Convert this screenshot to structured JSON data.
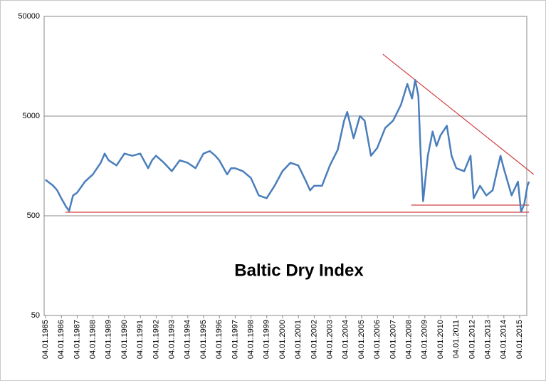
{
  "chart_data": {
    "type": "line",
    "title": "Baltic Dry Index",
    "log_scale": true,
    "grid": true,
    "x": [
      1985.0,
      1985.5,
      1985.75,
      1986.0,
      1986.3,
      1986.5,
      1986.75,
      1987.0,
      1987.5,
      1988.0,
      1988.5,
      1988.75,
      1989.0,
      1989.5,
      1990.0,
      1990.5,
      1991.0,
      1991.5,
      1991.75,
      1992.0,
      1992.5,
      1993.0,
      1993.5,
      1994.0,
      1994.5,
      1995.0,
      1995.4,
      1995.75,
      1996.0,
      1996.5,
      1996.75,
      1997.0,
      1997.5,
      1998.0,
      1998.5,
      1999.0,
      1999.5,
      2000.0,
      2000.5,
      2001.0,
      2001.5,
      2001.75,
      2002.0,
      2002.5,
      2003.0,
      2003.5,
      2003.9,
      2004.1,
      2004.5,
      2004.9,
      2005.2,
      2005.6,
      2006.0,
      2006.5,
      2007.0,
      2007.5,
      2007.9,
      2008.2,
      2008.4,
      2008.6,
      2008.75,
      2008.9,
      2009.2,
      2009.5,
      2009.75,
      2010.0,
      2010.4,
      2010.7,
      2011.0,
      2011.5,
      2011.9,
      2012.1,
      2012.5,
      2012.9,
      2013.3,
      2013.8,
      2014.0,
      2014.5,
      2014.9,
      2015.1,
      2015.3,
      2015.5,
      2015.6
    ],
    "series": [
      {
        "name": "Baltic Dry Index",
        "color": "#4a7ebb",
        "values": [
          1150,
          1000,
          900,
          750,
          620,
          560,
          800,
          850,
          1100,
          1300,
          1700,
          2100,
          1800,
          1600,
          2100,
          2000,
          2100,
          1500,
          1800,
          2000,
          1700,
          1400,
          1800,
          1700,
          1500,
          2100,
          2230,
          2000,
          1800,
          1300,
          1500,
          1500,
          1400,
          1200,
          800,
          750,
          1000,
          1400,
          1700,
          1600,
          1100,
          900,
          1000,
          1000,
          1600,
          2300,
          4500,
          5500,
          3000,
          5000,
          4500,
          2000,
          2400,
          3800,
          4500,
          6500,
          10500,
          7500,
          11500,
          8000,
          2000,
          700,
          2000,
          3500,
          2500,
          3200,
          4000,
          2000,
          1500,
          1400,
          2000,
          750,
          1000,
          800,
          900,
          2000,
          1500,
          800,
          1100,
          550,
          650,
          1000,
          1100
        ]
      }
    ],
    "trend_lines": [
      {
        "color": "#d04040",
        "x": [
          2006.35,
          2015.9
        ],
        "values": [
          20900,
          1300
        ]
      },
      {
        "color": "#d04040",
        "x": [
          1986.27,
          2015.6
        ],
        "values": [
          543,
          543
        ]
      },
      {
        "color": "#d04040",
        "x": [
          2008.15,
          2015.6
        ],
        "values": [
          640,
          640
        ]
      }
    ],
    "xlim": [
      1984.92,
      2015.46
    ],
    "ylim": [
      50,
      50000
    ],
    "yticks": [
      50,
      500,
      5000,
      50000
    ],
    "xticks": [
      {
        "value": 1985.01,
        "label": "04.01.1985"
      },
      {
        "value": 1986.01,
        "label": "04.01.1986"
      },
      {
        "value": 1987.01,
        "label": "04.01.1987"
      },
      {
        "value": 1988.01,
        "label": "04.01.1988"
      },
      {
        "value": 1989.01,
        "label": "04.01.1989"
      },
      {
        "value": 1990.01,
        "label": "04.01.1990"
      },
      {
        "value": 1991.01,
        "label": "04.01.1991"
      },
      {
        "value": 1992.01,
        "label": "04.01.1992"
      },
      {
        "value": 1993.01,
        "label": "04.01.1993"
      },
      {
        "value": 1994.01,
        "label": "04.01.1994"
      },
      {
        "value": 1995.01,
        "label": "04.01.1995"
      },
      {
        "value": 1996.01,
        "label": "04.01.1996"
      },
      {
        "value": 1997.01,
        "label": "04.01.1997"
      },
      {
        "value": 1998.01,
        "label": "04.01.1998"
      },
      {
        "value": 1999.01,
        "label": "04.01.1999"
      },
      {
        "value": 2000.01,
        "label": "04.01.2000"
      },
      {
        "value": 2001.01,
        "label": "04.01.2001"
      },
      {
        "value": 2002.01,
        "label": "04.01.2002"
      },
      {
        "value": 2003.01,
        "label": "04.01.2003"
      },
      {
        "value": 2004.01,
        "label": "04.01.2004"
      },
      {
        "value": 2005.01,
        "label": "04.01.2005"
      },
      {
        "value": 2006.01,
        "label": "04.01.2006"
      },
      {
        "value": 2007.01,
        "label": "04.01.2007"
      },
      {
        "value": 2008.01,
        "label": "04.01.2008"
      },
      {
        "value": 2009.01,
        "label": "04.01.2009"
      },
      {
        "value": 2010.01,
        "label": "04.01.2010"
      },
      {
        "value": 2011.01,
        "label": "04.01.2011"
      },
      {
        "value": 2012.01,
        "label": "04.01.2012"
      },
      {
        "value": 2013.01,
        "label": "04.01.2013"
      },
      {
        "value": 2014.01,
        "label": "04.01.2014"
      },
      {
        "value": 2015.01,
        "label": "04.01.2015"
      }
    ]
  }
}
